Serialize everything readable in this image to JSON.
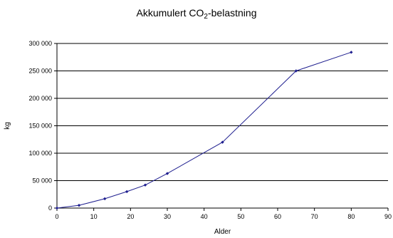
{
  "chart_data": {
    "type": "line",
    "title_parts": {
      "before": "Akkumulert CO",
      "sub": "2",
      "after": "-belastning"
    },
    "xlabel": "Alder",
    "ylabel": "kg",
    "xlim": [
      0,
      90
    ],
    "ylim": [
      0,
      300000
    ],
    "x_ticks": [
      0,
      10,
      20,
      30,
      40,
      50,
      60,
      70,
      80,
      90
    ],
    "y_ticks": [
      0,
      50000,
      100000,
      150000,
      200000,
      250000,
      300000
    ],
    "y_tick_labels": [
      "0",
      "50 000",
      "100 000",
      "150 000",
      "200 000",
      "250 000",
      "300 000"
    ],
    "grid": "horizontal",
    "series": [
      {
        "color": "#1f1f8f",
        "x": [
          0,
          6,
          13,
          19,
          24,
          30,
          45,
          65,
          80
        ],
        "y": [
          0,
          5000,
          17000,
          30000,
          42000,
          63000,
          120000,
          250000,
          284000
        ]
      }
    ]
  }
}
